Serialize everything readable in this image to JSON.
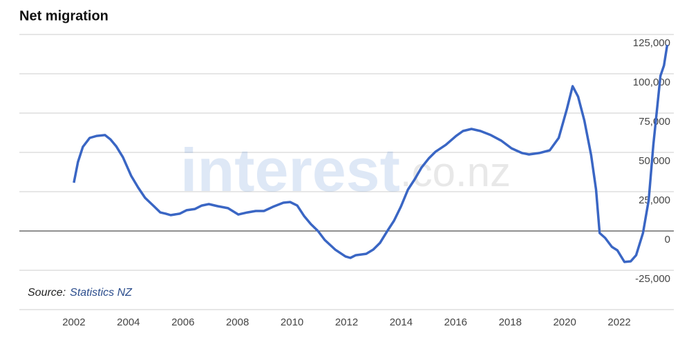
{
  "chart_data": {
    "type": "line",
    "title": "Net migration",
    "source_label": "Source:",
    "source_name": "Statistics NZ",
    "watermark": [
      "interest",
      ".co.nz"
    ],
    "x": [
      2002.0,
      2002.15,
      2002.33,
      2002.58,
      2002.84,
      2003.14,
      2003.34,
      2003.55,
      2003.8,
      2004.1,
      2004.36,
      2004.61,
      2004.91,
      2005.17,
      2005.37,
      2005.55,
      2005.88,
      2006.13,
      2006.44,
      2006.69,
      2006.95,
      2007.27,
      2007.65,
      2008.03,
      2008.36,
      2008.67,
      2008.97,
      2009.3,
      2009.68,
      2009.93,
      2010.19,
      2010.44,
      2010.69,
      2010.95,
      2011.2,
      2011.58,
      2011.96,
      2012.14,
      2012.34,
      2012.72,
      2012.98,
      2013.23,
      2013.48,
      2013.74,
      2013.99,
      2014.25,
      2014.5,
      2014.75,
      2015.01,
      2015.26,
      2015.64,
      2016.02,
      2016.27,
      2016.58,
      2016.91,
      2017.29,
      2017.67,
      2018.05,
      2018.43,
      2018.69,
      2019.07,
      2019.45,
      2019.78,
      2020.08,
      2020.29,
      2020.49,
      2020.72,
      2020.97,
      2021.15,
      2021.28,
      2021.48,
      2021.73,
      2021.93,
      2022.19,
      2022.42,
      2022.62,
      2022.87,
      2023.08,
      2023.25,
      2023.51,
      2023.64,
      2023.76
    ],
    "series": [
      {
        "name": "Net migration",
        "color": "#3a66c4",
        "values": [
          30700,
          43900,
          53500,
          59200,
          60500,
          61000,
          58300,
          53900,
          46900,
          35100,
          27600,
          21100,
          16200,
          11800,
          11000,
          10100,
          11000,
          13200,
          14000,
          16200,
          17100,
          15800,
          14500,
          10500,
          11800,
          12700,
          12700,
          15400,
          18000,
          18400,
          16200,
          9600,
          4400,
          0,
          -5700,
          -11800,
          -16200,
          -17100,
          -15400,
          -14500,
          -11800,
          -7500,
          -400,
          6600,
          15400,
          26300,
          32900,
          40400,
          46100,
          50400,
          54800,
          60500,
          63600,
          64900,
          63600,
          61000,
          57500,
          52600,
          49600,
          48700,
          49600,
          51300,
          59200,
          77600,
          92100,
          85500,
          70200,
          48200,
          26300,
          -1300,
          -4400,
          -10100,
          -12300,
          -19700,
          -19300,
          -15400,
          -1300,
          19700,
          54800,
          98700,
          105300,
          118400
        ]
      }
    ],
    "xlim": [
      2000,
      2024
    ],
    "xticks": [
      2002,
      2004,
      2006,
      2008,
      2010,
      2012,
      2014,
      2016,
      2018,
      2020,
      2022
    ],
    "ylim": [
      -50000,
      125000
    ],
    "yticks": [
      {
        "value": -25000,
        "label": "-25,000"
      },
      0,
      {
        "value": 25000,
        "label": "25,000"
      },
      {
        "value": 50000,
        "label": "50,000"
      },
      {
        "value": 75000,
        "label": "75,000"
      },
      {
        "value": 100000,
        "label": "100,000"
      },
      {
        "value": 125000,
        "label": "125,000"
      }
    ],
    "grid": true
  }
}
